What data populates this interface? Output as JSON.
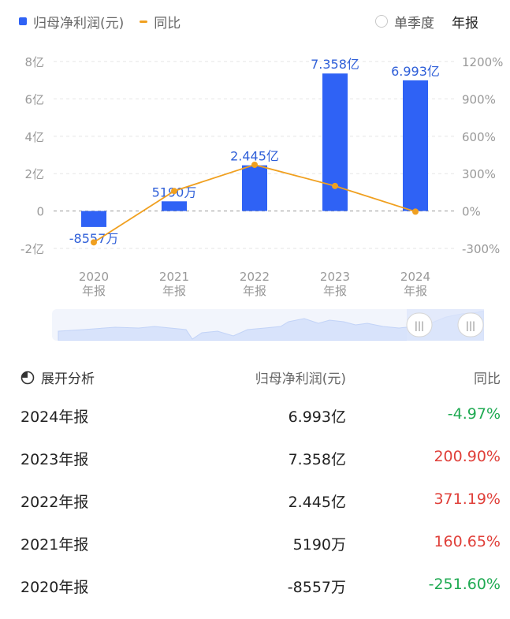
{
  "legend": {
    "bar_label": "归母净利润(元)",
    "line_label": "同比"
  },
  "toggle": {
    "option_quarter": "单季度",
    "option_annual": "年报"
  },
  "chart_data": {
    "type": "bar",
    "categories": [
      "2020 年报",
      "2021 年报",
      "2022 年报",
      "2023 年报",
      "2024 年报"
    ],
    "category_lines": [
      [
        "2020",
        "年报"
      ],
      [
        "2021",
        "年报"
      ],
      [
        "2022",
        "年报"
      ],
      [
        "2023",
        "年报"
      ],
      [
        "2024",
        "年报"
      ]
    ],
    "series": [
      {
        "name": "归母净利润(元)",
        "type": "bar",
        "axis": "left",
        "unit": "亿",
        "values": [
          -0.8557,
          0.519,
          2.445,
          7.358,
          6.993
        ],
        "labels": [
          "-8557万",
          "5190万",
          "2.445亿",
          "7.358亿",
          "6.993亿"
        ],
        "color": "#2f62f5"
      },
      {
        "name": "同比",
        "type": "line",
        "axis": "right",
        "unit": "%",
        "values": [
          -251.6,
          160.65,
          371.19,
          200.9,
          -4.97
        ],
        "color": "#f0a020"
      }
    ],
    "left_axis": {
      "ylim": [
        -2,
        8
      ],
      "ticks": [
        -2,
        0,
        2,
        4,
        6,
        8
      ],
      "tick_labels": [
        "-2亿",
        "0",
        "2亿",
        "4亿",
        "6亿",
        "8亿"
      ]
    },
    "right_axis": {
      "ylim": [
        -300,
        1200
      ],
      "ticks": [
        -300,
        0,
        300,
        600,
        900,
        1200
      ],
      "tick_labels": [
        "-300%",
        "0%",
        "300%",
        "600%",
        "900%",
        "1200%"
      ]
    },
    "grid": true,
    "legend_position": "top-left"
  },
  "table": {
    "header": {
      "label": "展开分析",
      "col1": "归母净利润(元)",
      "col2": "同比"
    },
    "rows": [
      {
        "period": "2024年报",
        "value": "6.993亿",
        "yoy": "-4.97%",
        "trend": "neg"
      },
      {
        "period": "2023年报",
        "value": "7.358亿",
        "yoy": "200.90%",
        "trend": "pos"
      },
      {
        "period": "2022年报",
        "value": "2.445亿",
        "yoy": "371.19%",
        "trend": "pos"
      },
      {
        "period": "2021年报",
        "value": "5190万",
        "yoy": "160.65%",
        "trend": "pos"
      },
      {
        "period": "2020年报",
        "value": "-8557万",
        "yoy": "-251.60%",
        "trend": "neg"
      }
    ]
  }
}
